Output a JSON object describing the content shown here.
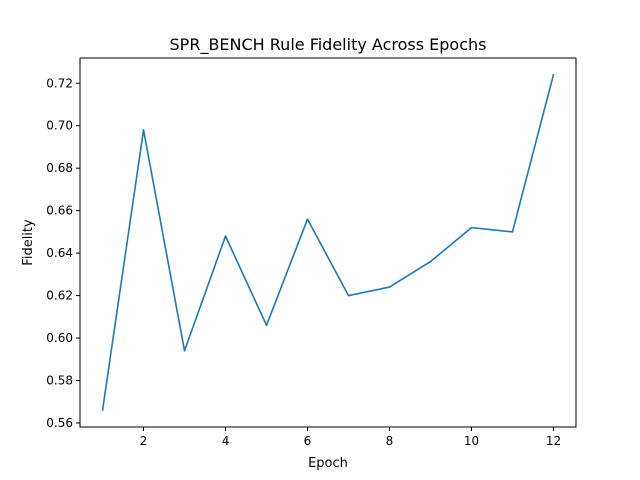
{
  "chart_data": {
    "type": "line",
    "title": "SPR_BENCH Rule Fidelity Across Epochs",
    "xlabel": "Epoch",
    "ylabel": "Fidelity",
    "x": [
      1,
      2,
      3,
      4,
      5,
      6,
      7,
      8,
      9,
      10,
      11,
      12
    ],
    "series": [
      {
        "values": [
          0.566,
          0.698,
          0.594,
          0.648,
          0.606,
          0.656,
          0.62,
          0.624,
          0.636,
          0.652,
          0.65,
          0.724
        ],
        "color": "#1f77b4"
      }
    ],
    "xlim": [
      0.45,
      12.55
    ],
    "ylim": [
      0.5581,
      0.7319
    ],
    "xticks": [
      2,
      4,
      6,
      8,
      10,
      12
    ],
    "yticks": [
      0.56,
      0.58,
      0.6,
      0.62,
      0.64,
      0.66,
      0.68,
      0.7,
      0.72
    ],
    "xtick_labels": [
      "2",
      "4",
      "6",
      "8",
      "10",
      "12"
    ],
    "ytick_labels": [
      "0.56",
      "0.58",
      "0.60",
      "0.62",
      "0.64",
      "0.66",
      "0.68",
      "0.70",
      "0.72"
    ],
    "grid": false,
    "legend": "none"
  }
}
